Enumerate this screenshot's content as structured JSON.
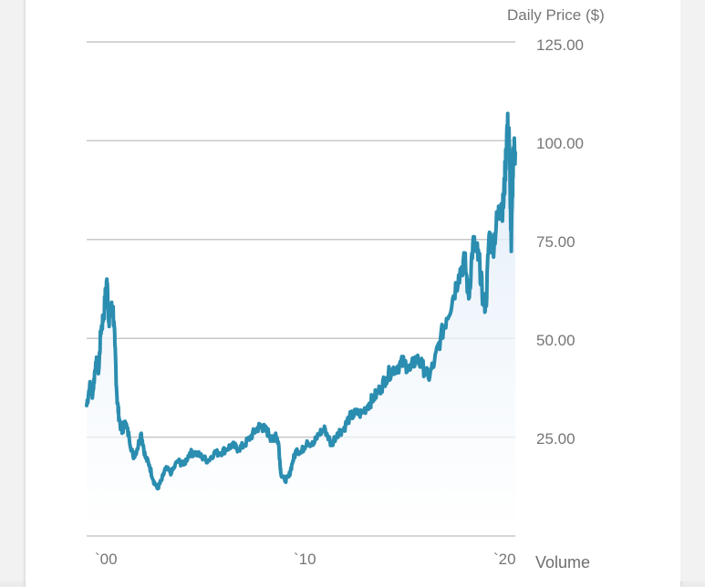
{
  "colors": {
    "line": "#2b8db0",
    "grid": "#c8c8c8",
    "axis_text": "#757575",
    "fill": "#e8f2fb"
  },
  "chart_data": {
    "type": "line",
    "title": "",
    "ylabel": "Daily Price ($)",
    "xlabel": "",
    "ylim": [
      0,
      125
    ],
    "xlim": [
      1999.4,
      2020.6
    ],
    "y_ticks": [
      "125.00",
      "100.00",
      "75.00",
      "50.00",
      "25.00"
    ],
    "y_tick_values": [
      125,
      100,
      75,
      50,
      25
    ],
    "x_ticks": [
      "`00",
      "`10",
      "`20"
    ],
    "x_tick_values": [
      2000,
      2010,
      2020
    ],
    "grid": true,
    "volume_label": "Volume",
    "series": [
      {
        "name": "Daily Price",
        "x": [
          1999.4,
          1999.55,
          1999.7,
          1999.85,
          2000.0,
          2000.1,
          2000.25,
          2000.4,
          2000.5,
          2000.6,
          2000.7,
          2000.8,
          2000.9,
          2001.0,
          2001.15,
          2001.3,
          2001.5,
          2001.7,
          2001.9,
          2002.1,
          2002.3,
          2002.5,
          2002.7,
          2002.9,
          2003.1,
          2003.3,
          2003.6,
          2003.9,
          2004.2,
          2004.5,
          2004.8,
          2005.1,
          2005.4,
          2005.7,
          2006.0,
          2006.3,
          2006.6,
          2006.9,
          2007.2,
          2007.5,
          2007.8,
          2008.0,
          2008.2,
          2008.4,
          2008.6,
          2008.75,
          2008.9,
          2009.0,
          2009.2,
          2009.4,
          2009.6,
          2009.8,
          2010.0,
          2010.3,
          2010.6,
          2010.9,
          2011.2,
          2011.5,
          2011.8,
          2012.1,
          2012.4,
          2012.7,
          2013.0,
          2013.3,
          2013.6,
          2013.9,
          2014.2,
          2014.5,
          2014.8,
          2015.1,
          2015.4,
          2015.7,
          2016.0,
          2016.3,
          2016.6,
          2016.9,
          2017.2,
          2017.5,
          2017.8,
          2018.1,
          2018.3,
          2018.5,
          2018.7,
          2018.85,
          2019.0,
          2019.15,
          2019.3,
          2019.5,
          2019.7,
          2019.9,
          2020.0,
          2020.1,
          2020.2,
          2020.3,
          2020.4,
          2020.5,
          2020.6
        ],
        "values": [
          33,
          38,
          36,
          44,
          42,
          52,
          56,
          65,
          55,
          57,
          58,
          48,
          35,
          30,
          26,
          29,
          25,
          20,
          22,
          26,
          20,
          18,
          14,
          12,
          14,
          17,
          16,
          19,
          18,
          21,
          21,
          20,
          19,
          21,
          21,
          22,
          23,
          22,
          23,
          25,
          27,
          28,
          27,
          26,
          24,
          26,
          23,
          16,
          14,
          15,
          19,
          22,
          21,
          24,
          23,
          26,
          27,
          23,
          26,
          27,
          30,
          31,
          31,
          33,
          35,
          37,
          40,
          42,
          43,
          44,
          42,
          45,
          43,
          40,
          44,
          50,
          55,
          60,
          66,
          70,
          60,
          74,
          72,
          68,
          60,
          58,
          76,
          73,
          80,
          84,
          83,
          92,
          104,
          100,
          72,
          98,
          97
        ]
      }
    ]
  }
}
